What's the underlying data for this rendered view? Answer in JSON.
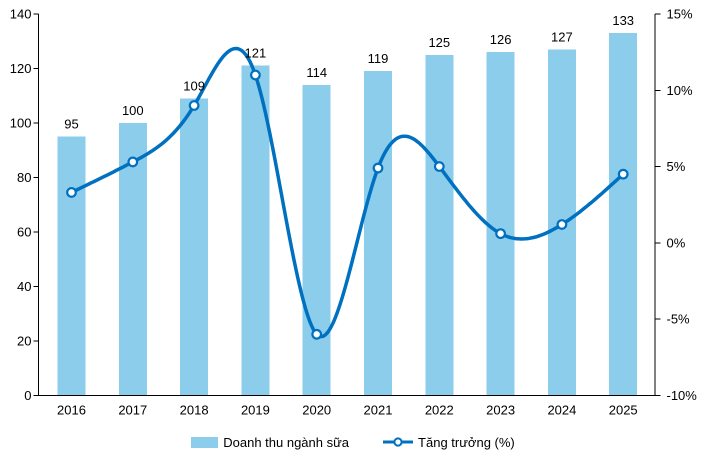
{
  "chart_data": {
    "type": "combo-bar-line",
    "title": "",
    "categories": [
      "2016",
      "2017",
      "2018",
      "2019",
      "2020",
      "2021",
      "2022",
      "2023",
      "2024",
      "2025"
    ],
    "series": [
      {
        "name": "Doanh thu ngành sữa",
        "type": "bar",
        "axis": "left",
        "values": [
          95,
          100,
          109,
          121,
          114,
          119,
          125,
          126,
          127,
          133
        ],
        "color": "#8CCDEB",
        "data_labels": true
      },
      {
        "name": "Tăng trưởng (%)",
        "type": "line",
        "axis": "right",
        "values": [
          3.3,
          5.3,
          9.0,
          11.0,
          -6.0,
          4.9,
          5.0,
          0.6,
          1.2,
          4.5
        ],
        "color": "#0070C0",
        "smooth": true,
        "marker_fill": "#FFFFFF",
        "marker_stroke": "#0070C0"
      }
    ],
    "left_axis": {
      "min": 0,
      "max": 140,
      "step": 20,
      "tick_labels": [
        "140",
        "120",
        "100",
        "80",
        "60",
        "40",
        "20",
        "0"
      ]
    },
    "right_axis": {
      "min": -10,
      "max": 15,
      "step": 5,
      "tick_labels": [
        "15%",
        "10%",
        "5%",
        "0%",
        "-5%",
        "-10%"
      ]
    },
    "grid": false,
    "legend_position": "bottom",
    "text_color": "#000000",
    "axis_color": "#000000"
  }
}
